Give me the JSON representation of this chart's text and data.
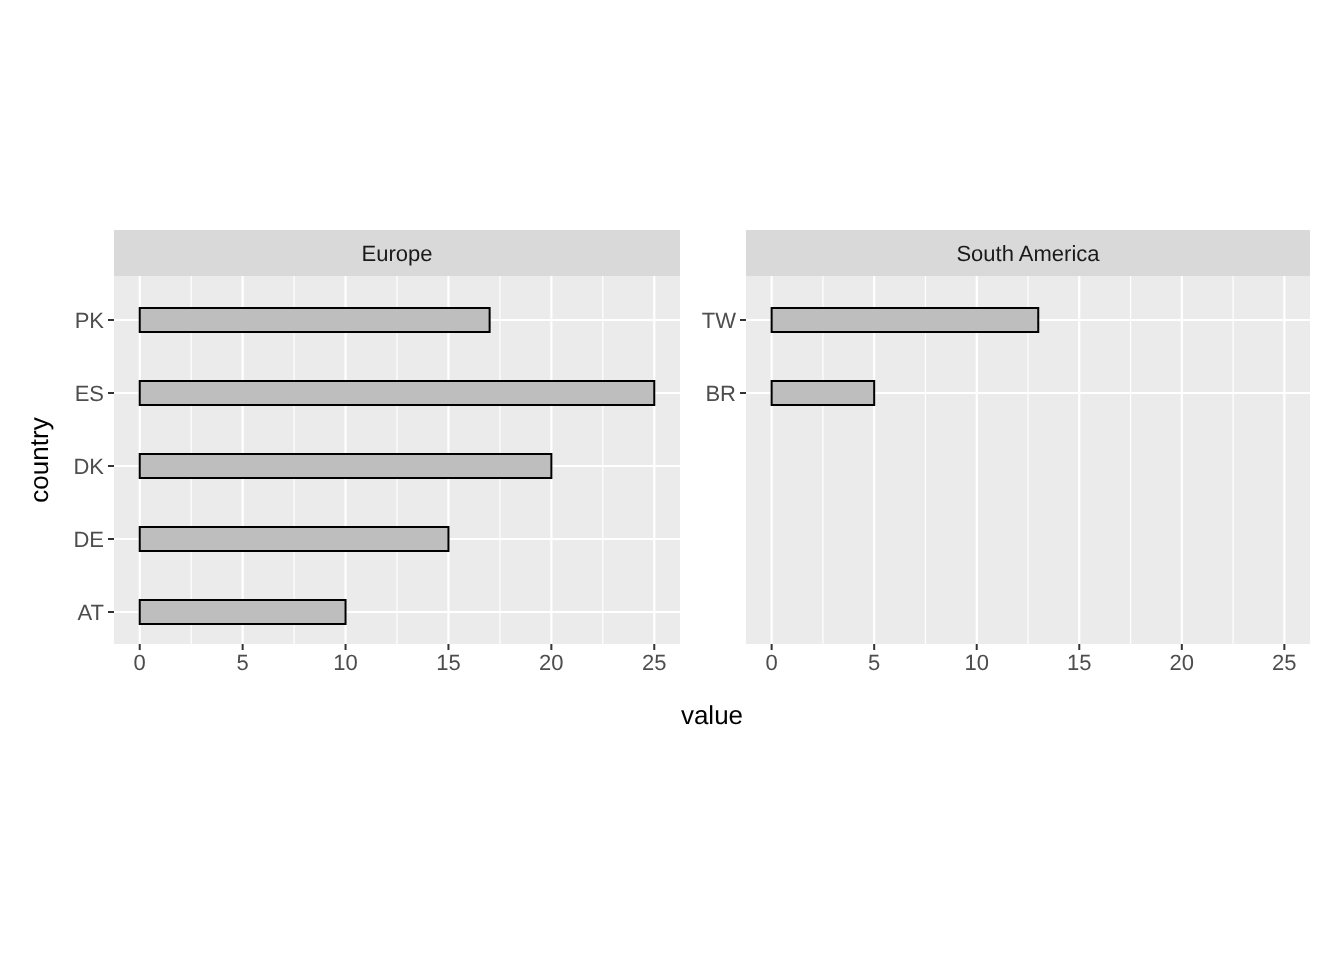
{
  "chart_data": [
    {
      "type": "bar",
      "orientation": "horizontal",
      "title": "Europe",
      "xlabel": "value",
      "ylabel": "country",
      "categories": [
        "PK",
        "ES",
        "DK",
        "DE",
        "AT"
      ],
      "series": [
        {
          "color": "#bebebe",
          "values": [
            17,
            25,
            20,
            15,
            10
          ]
        }
      ],
      "xlim": [
        -1.25,
        26.25
      ],
      "xticks": [
        0,
        {
          "value": 2.5,
          "label": null
        },
        5,
        {
          "value": 7.5,
          "label": null
        },
        10,
        {
          "value": 12.5,
          "label": null
        },
        15,
        {
          "value": 17.5,
          "label": null
        },
        20,
        {
          "value": 22.5,
          "label": null
        },
        25
      ],
      "grid": true
    },
    {
      "type": "bar",
      "orientation": "horizontal",
      "title": "South America",
      "categories": [
        "TW",
        "BR",
        null,
        null,
        null
      ],
      "series": [
        {
          "color": "#bebebe",
          "values": [
            13,
            5,
            null,
            null,
            null
          ]
        }
      ],
      "xlim": [
        -1.25,
        26.25
      ],
      "xticks": [
        0,
        {
          "value": 2.5,
          "label": null
        },
        5,
        {
          "value": 7.5,
          "label": null
        },
        10,
        {
          "value": 12.5,
          "label": null
        },
        15,
        {
          "value": 17.5,
          "label": null
        },
        20,
        {
          "value": 22.5,
          "label": null
        },
        25
      ],
      "grid": true
    }
  ]
}
